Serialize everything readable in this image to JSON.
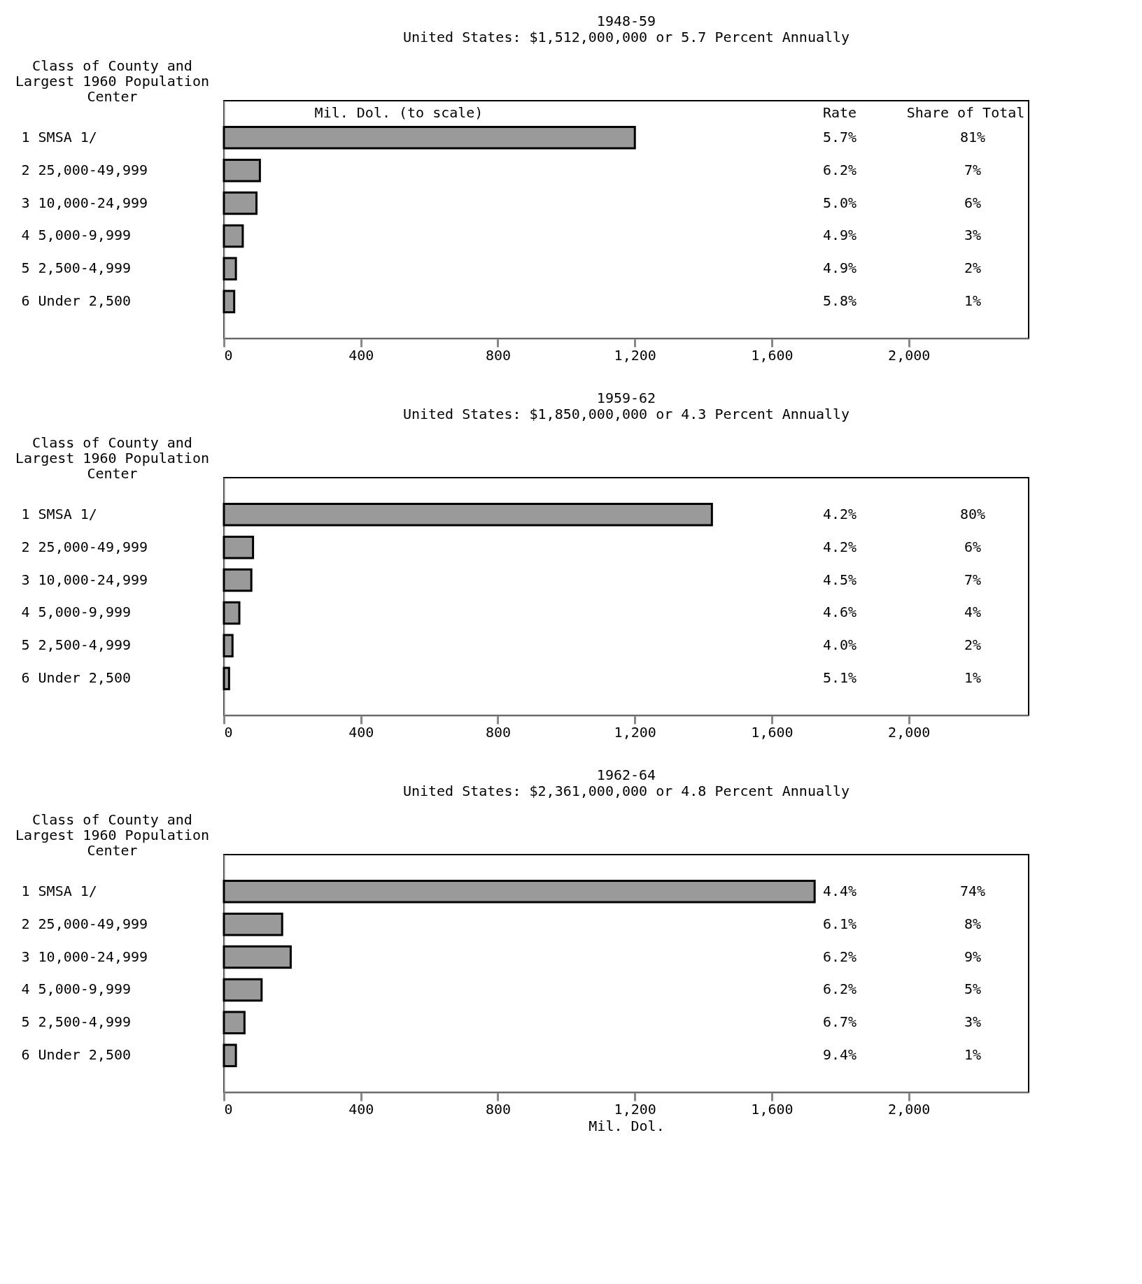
{
  "chart_data": [
    {
      "type": "bar",
      "orientation": "horizontal",
      "title": "1948-59",
      "subtitle": "United States:  $1,512,000,000 or 5.7 Percent Annually",
      "ylabel": "Class of County and Largest 1960 Population Center",
      "categories": [
        "1  SMSA 1/",
        "2  25,000-49,999",
        "3  10,000-24,999",
        "4  5,000-9,999",
        "5  2,500-4,999",
        "6  Under 2,500"
      ],
      "values": [
        1200,
        105,
        95,
        55,
        35,
        30
      ],
      "color": "#9a9a9a",
      "xlim": [
        0,
        2350
      ],
      "xticks": [
        0,
        400,
        800,
        {
          "value": 1200,
          "label": "1,200"
        },
        {
          "value": 1600,
          "label": "1,600"
        },
        {
          "value": 2000,
          "label": "2,000"
        }
      ],
      "grid": false,
      "annotations": [
        "Mil. Dol. (to scale)",
        "Rate",
        "Share of Total",
        "5.7%",
        "81%",
        "6.2%",
        "7%",
        "5.0%",
        "6%",
        "4.9%",
        "3%",
        "4.9%",
        "2%",
        "5.8%",
        "1%"
      ]
    },
    {
      "type": "bar",
      "orientation": "horizontal",
      "title": "1959-62",
      "subtitle": "United States:  $1,850,000,000 or 4.3 Percent Annually",
      "ylabel": "Class of County and Largest 1960 Population Center",
      "categories": [
        "1  SMSA 1/",
        "2  25,000-49,999",
        "3  10,000-24,999",
        "4  5,000-9,999",
        "5  2,500-4,999",
        "6  Under 2,500"
      ],
      "values": [
        1425,
        85,
        80,
        45,
        25,
        15
      ],
      "color": "#9a9a9a",
      "xlim": [
        0,
        2350
      ],
      "xticks": [
        0,
        400,
        800,
        {
          "value": 1200,
          "label": "1,200"
        },
        {
          "value": 1600,
          "label": "1,600"
        },
        {
          "value": 2000,
          "label": "2,000"
        }
      ],
      "grid": false,
      "annotations": [
        "4.2%",
        "80%",
        "4.2%",
        "6%",
        "4.5%",
        "7%",
        "4.6%",
        "4%",
        "4.0%",
        "2%",
        "5.1%",
        "1%"
      ]
    },
    {
      "type": "bar",
      "orientation": "horizontal",
      "title": "1962-64",
      "subtitle": "United States:  $2,361,000,000 or 4.8 Percent Annually",
      "ylabel": "Class of County and Largest 1960 Population Center",
      "xlabel": "Mil. Dol.",
      "categories": [
        "1  SMSA 1/",
        "2  25,000-49,999",
        "3  10,000-24,999",
        "4  5,000-9,999",
        "5  2,500-4,999",
        "6  Under 2,500"
      ],
      "values": [
        1725,
        170,
        195,
        110,
        60,
        35
      ],
      "color": "#9a9a9a",
      "xlim": [
        0,
        2350
      ],
      "xticks": [
        0,
        400,
        800,
        {
          "value": 1200,
          "label": "1,200"
        },
        {
          "value": 1600,
          "label": "1,600"
        },
        {
          "value": 2000,
          "label": "2,000"
        }
      ],
      "grid": false,
      "annotations": [
        "4.4%",
        "74%",
        "6.1%",
        "8%",
        "6.2%",
        "9%",
        "6.2%",
        "5%",
        "6.7%",
        "3%",
        "9.4%",
        "1%"
      ]
    }
  ]
}
